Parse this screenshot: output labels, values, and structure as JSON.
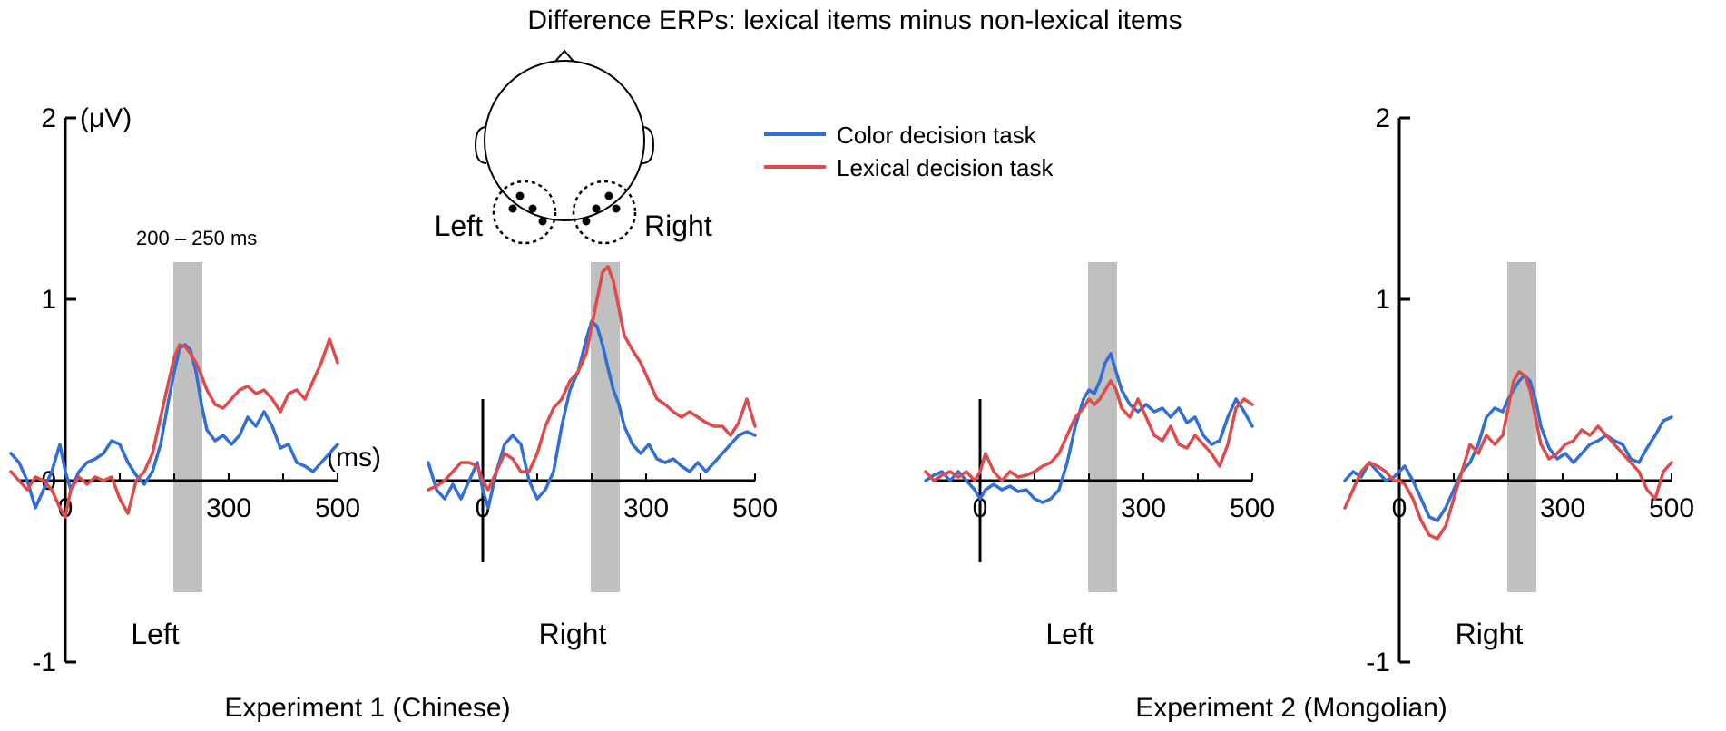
{
  "title": "Difference ERPs: lexical items minus non-lexical items",
  "colors": {
    "color_task": "#2f6fd6",
    "lexical_task": "#e04a4a",
    "window": "#c0c0c0",
    "axis": "#000000"
  },
  "legend": {
    "position": "top-center",
    "entries": [
      {
        "label": "Color decision task",
        "color": "#2f6fd6"
      },
      {
        "label": "Lexical decision task",
        "color": "#e04a4a"
      }
    ]
  },
  "window_label": "200 – 250 ms",
  "head": {
    "left_label": "Left",
    "right_label": "Right"
  },
  "y_unit": "(μV)",
  "x_unit": "(ms)",
  "experiments": [
    {
      "label": "Experiment 1 (Chinese)"
    },
    {
      "label": "Experiment 2 (Mongolian)"
    }
  ],
  "chart_data": [
    {
      "type": "line",
      "panel": "Left",
      "experiment": "Experiment 1 (Chinese)",
      "xlim": [
        -100,
        500
      ],
      "ylim": [
        -1,
        2
      ],
      "x_ticks": [
        "0",
        "300",
        "500"
      ],
      "y_ticks": [
        "2",
        "1",
        "0",
        "-1"
      ],
      "window": [
        200,
        250
      ],
      "series": [
        {
          "name": "Color decision task",
          "x": [
            -100,
            -85,
            -70,
            -55,
            -40,
            -25,
            -10,
            0,
            10,
            25,
            40,
            55,
            70,
            85,
            100,
            115,
            130,
            145,
            160,
            175,
            190,
            200,
            210,
            220,
            230,
            240,
            250,
            260,
            275,
            290,
            305,
            320,
            335,
            350,
            365,
            380,
            395,
            410,
            425,
            440,
            455,
            470,
            485,
            500
          ],
          "y": [
            0.15,
            0.1,
            0.0,
            -0.15,
            -0.05,
            0.05,
            0.2,
            0.05,
            -0.05,
            0.05,
            0.1,
            0.12,
            0.15,
            0.22,
            0.2,
            0.1,
            0.03,
            -0.02,
            0.05,
            0.2,
            0.45,
            0.6,
            0.73,
            0.75,
            0.72,
            0.6,
            0.42,
            0.28,
            0.22,
            0.25,
            0.2,
            0.25,
            0.35,
            0.3,
            0.38,
            0.3,
            0.18,
            0.2,
            0.1,
            0.08,
            0.05,
            0.1,
            0.15,
            0.2
          ]
        },
        {
          "name": "Lexical decision task",
          "x": [
            -100,
            -85,
            -70,
            -55,
            -40,
            -25,
            -10,
            0,
            10,
            25,
            40,
            55,
            70,
            85,
            100,
            115,
            130,
            145,
            160,
            175,
            190,
            200,
            210,
            220,
            230,
            240,
            250,
            260,
            275,
            290,
            305,
            320,
            335,
            350,
            365,
            380,
            395,
            410,
            425,
            440,
            455,
            470,
            485,
            500
          ],
          "y": [
            0.05,
            0.0,
            -0.05,
            0.02,
            0.0,
            -0.05,
            -0.15,
            -0.2,
            -0.05,
            0.02,
            -0.02,
            0.02,
            0.0,
            0.02,
            -0.1,
            -0.18,
            0.0,
            0.05,
            0.15,
            0.35,
            0.55,
            0.68,
            0.75,
            0.74,
            0.7,
            0.65,
            0.58,
            0.5,
            0.42,
            0.4,
            0.45,
            0.5,
            0.52,
            0.48,
            0.5,
            0.45,
            0.38,
            0.48,
            0.5,
            0.45,
            0.55,
            0.65,
            0.78,
            0.65
          ]
        }
      ]
    },
    {
      "type": "line",
      "panel": "Right",
      "experiment": "Experiment 1 (Chinese)",
      "xlim": [
        -100,
        500
      ],
      "ylim": [
        -1,
        2
      ],
      "x_ticks": [
        "0",
        "300",
        "500"
      ],
      "window": [
        200,
        250
      ],
      "series": [
        {
          "name": "Color decision task",
          "x": [
            -100,
            -85,
            -70,
            -55,
            -40,
            -25,
            -10,
            0,
            10,
            25,
            40,
            55,
            70,
            85,
            100,
            115,
            130,
            145,
            160,
            175,
            190,
            200,
            210,
            220,
            230,
            240,
            250,
            260,
            275,
            290,
            305,
            320,
            335,
            350,
            365,
            380,
            395,
            410,
            425,
            440,
            455,
            470,
            485,
            500
          ],
          "y": [
            0.1,
            -0.05,
            -0.1,
            -0.02,
            -0.1,
            0.0,
            0.1,
            -0.05,
            -0.15,
            0.05,
            0.2,
            0.25,
            0.2,
            0.0,
            -0.1,
            -0.05,
            0.05,
            0.3,
            0.5,
            0.6,
            0.78,
            0.88,
            0.85,
            0.75,
            0.62,
            0.5,
            0.42,
            0.3,
            0.2,
            0.15,
            0.2,
            0.12,
            0.1,
            0.12,
            0.08,
            0.05,
            0.1,
            0.05,
            0.1,
            0.15,
            0.2,
            0.25,
            0.27,
            0.25
          ]
        },
        {
          "name": "Lexical decision task",
          "x": [
            -100,
            -85,
            -70,
            -55,
            -40,
            -25,
            -10,
            0,
            10,
            25,
            40,
            55,
            70,
            85,
            100,
            115,
            130,
            145,
            160,
            175,
            190,
            200,
            210,
            220,
            230,
            240,
            250,
            260,
            275,
            290,
            305,
            320,
            335,
            350,
            365,
            380,
            395,
            410,
            425,
            440,
            455,
            470,
            485,
            500
          ],
          "y": [
            -0.05,
            -0.03,
            0.0,
            0.05,
            0.1,
            0.1,
            0.08,
            0.0,
            -0.05,
            0.05,
            0.15,
            0.12,
            0.05,
            0.05,
            0.15,
            0.3,
            0.4,
            0.45,
            0.55,
            0.6,
            0.7,
            0.85,
            1.0,
            1.15,
            1.18,
            1.1,
            0.95,
            0.8,
            0.72,
            0.65,
            0.55,
            0.45,
            0.42,
            0.38,
            0.35,
            0.38,
            0.35,
            0.32,
            0.3,
            0.3,
            0.25,
            0.32,
            0.45,
            0.3
          ]
        }
      ]
    },
    {
      "type": "line",
      "panel": "Left",
      "experiment": "Experiment 2 (Mongolian)",
      "xlim": [
        -100,
        500
      ],
      "ylim": [
        -1,
        2
      ],
      "x_ticks": [
        "0",
        "300",
        "500"
      ],
      "window": [
        200,
        250
      ],
      "series": [
        {
          "name": "Color decision task",
          "x": [
            -100,
            -85,
            -70,
            -55,
            -40,
            -25,
            -10,
            0,
            10,
            25,
            40,
            55,
            70,
            85,
            100,
            115,
            130,
            145,
            160,
            175,
            190,
            200,
            210,
            220,
            230,
            240,
            250,
            260,
            275,
            290,
            305,
            320,
            335,
            350,
            365,
            380,
            395,
            410,
            425,
            440,
            455,
            470,
            485,
            500
          ],
          "y": [
            0.0,
            0.03,
            0.05,
            0.0,
            0.05,
            0.0,
            -0.05,
            -0.1,
            -0.05,
            -0.02,
            -0.05,
            -0.03,
            -0.06,
            -0.05,
            -0.1,
            -0.12,
            -0.1,
            -0.05,
            0.1,
            0.3,
            0.45,
            0.5,
            0.48,
            0.55,
            0.65,
            0.7,
            0.6,
            0.5,
            0.42,
            0.38,
            0.42,
            0.38,
            0.4,
            0.35,
            0.4,
            0.32,
            0.35,
            0.25,
            0.2,
            0.22,
            0.35,
            0.45,
            0.38,
            0.3
          ]
        },
        {
          "name": "Lexical decision task",
          "x": [
            -100,
            -85,
            -70,
            -55,
            -40,
            -25,
            -10,
            0,
            10,
            25,
            40,
            55,
            70,
            85,
            100,
            115,
            130,
            145,
            160,
            175,
            190,
            200,
            210,
            220,
            230,
            240,
            250,
            260,
            275,
            290,
            305,
            320,
            335,
            350,
            365,
            380,
            395,
            410,
            425,
            440,
            455,
            470,
            485,
            500
          ],
          "y": [
            0.05,
            0.0,
            0.03,
            0.05,
            0.02,
            0.05,
            0.0,
            0.05,
            0.15,
            0.05,
            0.0,
            0.05,
            0.02,
            0.03,
            0.05,
            0.08,
            0.1,
            0.15,
            0.25,
            0.35,
            0.4,
            0.45,
            0.42,
            0.45,
            0.5,
            0.55,
            0.5,
            0.4,
            0.35,
            0.45,
            0.35,
            0.25,
            0.22,
            0.3,
            0.2,
            0.18,
            0.25,
            0.2,
            0.15,
            0.08,
            0.2,
            0.4,
            0.45,
            0.42
          ]
        }
      ]
    },
    {
      "type": "line",
      "panel": "Right",
      "experiment": "Experiment 2 (Mongolian)",
      "xlim": [
        -100,
        500
      ],
      "ylim": [
        -1,
        2
      ],
      "x_ticks": [
        "0",
        "300",
        "500"
      ],
      "y_ticks": [
        "2",
        "1",
        "-1"
      ],
      "window": [
        200,
        250
      ],
      "series": [
        {
          "name": "Color decision task",
          "x": [
            -100,
            -85,
            -70,
            -55,
            -40,
            -25,
            -10,
            0,
            10,
            25,
            40,
            55,
            70,
            85,
            100,
            115,
            130,
            145,
            160,
            175,
            190,
            200,
            210,
            220,
            230,
            240,
            250,
            260,
            275,
            290,
            305,
            320,
            335,
            350,
            365,
            380,
            395,
            410,
            425,
            440,
            455,
            470,
            485,
            500
          ],
          "y": [
            0.0,
            0.05,
            0.02,
            0.1,
            0.05,
            0.0,
            0.02,
            0.05,
            0.08,
            0.0,
            -0.1,
            -0.2,
            -0.22,
            -0.15,
            -0.05,
            0.05,
            0.1,
            0.2,
            0.35,
            0.4,
            0.38,
            0.45,
            0.5,
            0.55,
            0.58,
            0.55,
            0.45,
            0.3,
            0.18,
            0.12,
            0.15,
            0.1,
            0.15,
            0.2,
            0.22,
            0.25,
            0.22,
            0.2,
            0.12,
            0.1,
            0.18,
            0.25,
            0.33,
            0.35
          ]
        },
        {
          "name": "Lexical decision task",
          "x": [
            -100,
            -85,
            -70,
            -55,
            -40,
            -25,
            -10,
            0,
            10,
            25,
            40,
            55,
            70,
            85,
            100,
            115,
            130,
            145,
            160,
            175,
            190,
            200,
            210,
            220,
            230,
            240,
            250,
            260,
            275,
            290,
            305,
            320,
            335,
            350,
            365,
            380,
            395,
            410,
            425,
            440,
            455,
            470,
            485,
            500
          ],
          "y": [
            -0.15,
            -0.05,
            0.05,
            0.1,
            0.08,
            0.05,
            0.0,
            0.0,
            -0.02,
            -0.1,
            -0.22,
            -0.3,
            -0.32,
            -0.25,
            -0.1,
            0.05,
            0.2,
            0.15,
            0.25,
            0.2,
            0.25,
            0.4,
            0.55,
            0.6,
            0.58,
            0.5,
            0.35,
            0.2,
            0.12,
            0.15,
            0.2,
            0.22,
            0.28,
            0.25,
            0.3,
            0.25,
            0.2,
            0.15,
            0.1,
            0.05,
            -0.05,
            -0.1,
            0.05,
            0.1
          ]
        }
      ]
    }
  ]
}
